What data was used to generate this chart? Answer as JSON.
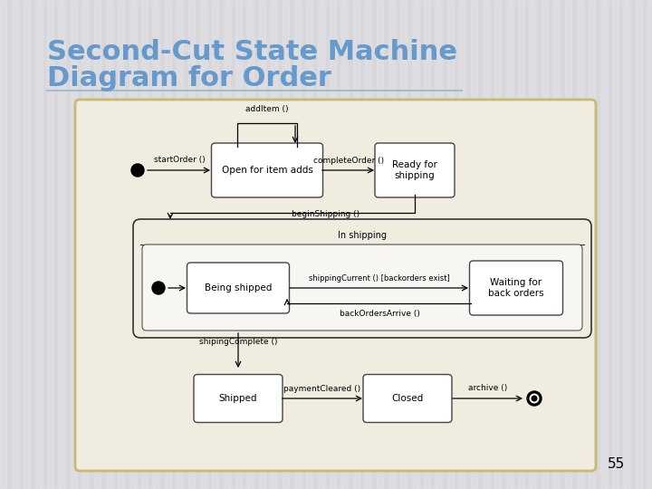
{
  "title_line1": "Second-Cut State Machine",
  "title_line2": "Diagram for Order",
  "title_color": "#6699cc",
  "slide_bg": "#d8d8dc",
  "diagram_bg": "#f0ece0",
  "diagram_border": "#c8b870",
  "page_number": "55",
  "stripe_color": "#ffffff",
  "stripe_alpha": 0.15,
  "title_fontsize": 22,
  "state_fontsize": 7.5,
  "label_fontsize": 6.5
}
